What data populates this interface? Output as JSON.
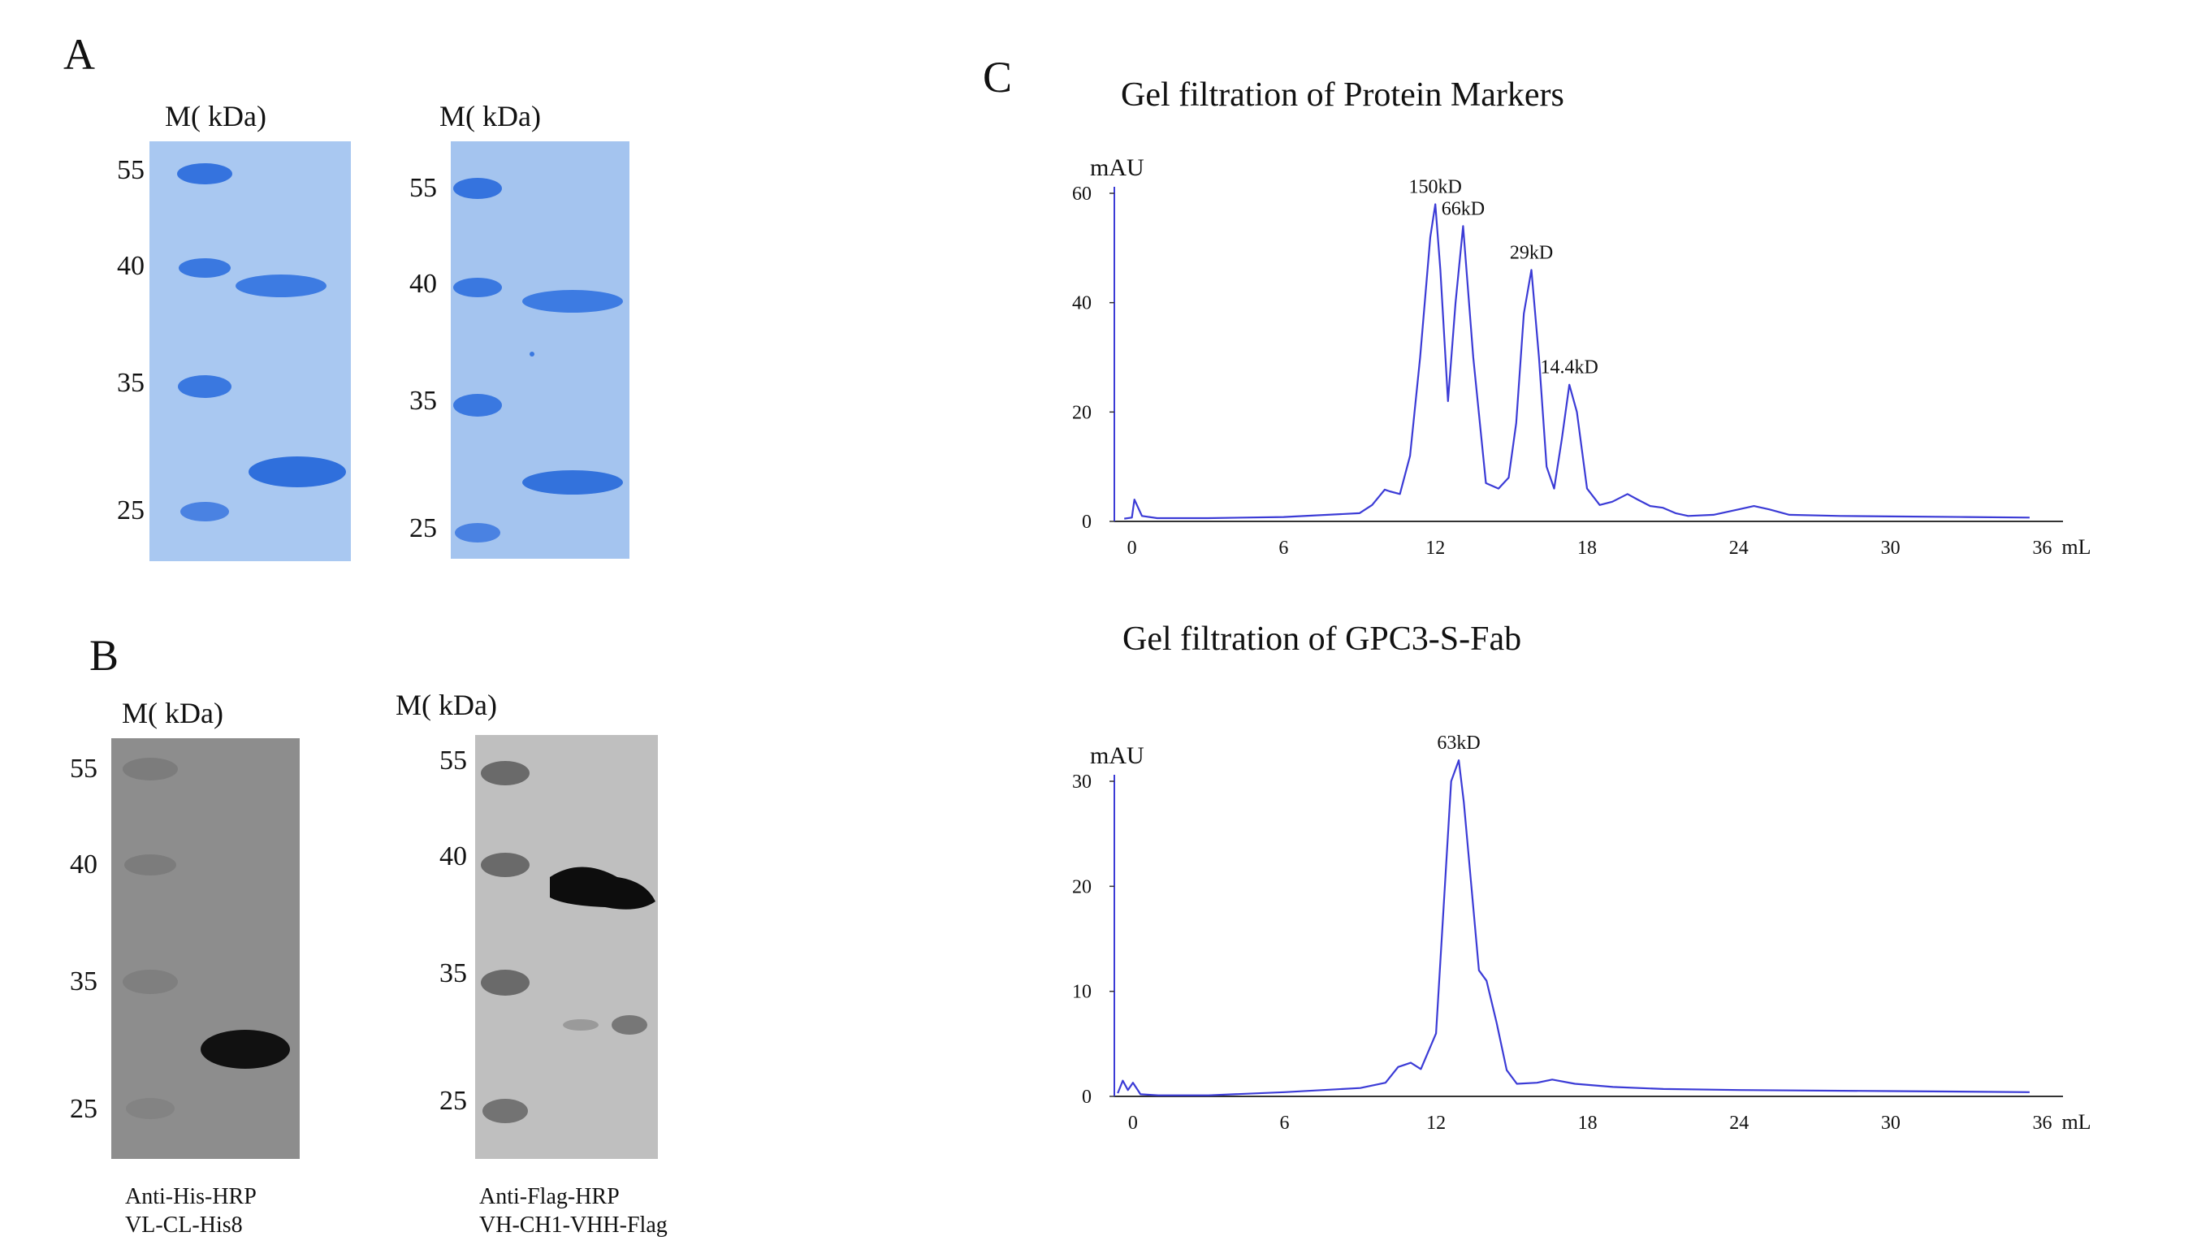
{
  "panels": {
    "a": "A",
    "b": "B",
    "c": "C"
  },
  "marker_label": "M( kDa)",
  "gel_a1": {
    "ticks": [
      "55",
      "40",
      "35",
      "25"
    ]
  },
  "gel_a2": {
    "ticks": [
      "55",
      "40",
      "35",
      "25"
    ]
  },
  "blot_b1": {
    "ticks": [
      "55",
      "40",
      "35",
      "25"
    ],
    "caption_line1": "Anti-His-HRP",
    "caption_line2": "VL-CL-His8"
  },
  "blot_b2": {
    "ticks": [
      "55",
      "40",
      "35",
      "25"
    ],
    "caption_line1": "Anti-Flag-HRP",
    "caption_line2": "VH-CH1-VHH-Flag"
  },
  "colors": {
    "gel_bg": "#a8c8f0",
    "gel_band": "#2f6fdc",
    "blot_bg": "#8c8c8c",
    "blot_bg2": "#bcbcbc",
    "trace": "#3b3bd6"
  },
  "chart_data": [
    {
      "type": "line",
      "title": "Gel filtration of Protein Markers",
      "ylabel": "mAU",
      "xlabel": "mL",
      "xlim": [
        -0.5,
        36.5
      ],
      "ylim": [
        0,
        60
      ],
      "xticks": [
        0,
        6,
        12,
        18,
        24,
        30,
        36
      ],
      "yticks": [
        0,
        20,
        40,
        60
      ],
      "x": [
        -0.3,
        0,
        0.1,
        0.4,
        1,
        3,
        6,
        9,
        9.5,
        10,
        10.2,
        10.6,
        11,
        11.4,
        11.8,
        12,
        12.2,
        12.5,
        12.8,
        13.1,
        13.5,
        14,
        14.5,
        14.9,
        15.2,
        15.5,
        15.8,
        16.1,
        16.4,
        16.7,
        17.0,
        17.3,
        17.6,
        18,
        18.5,
        19,
        19.6,
        20,
        20.5,
        21,
        21.5,
        22,
        23,
        24,
        24.6,
        25.2,
        26,
        28,
        30,
        33,
        35.5
      ],
      "series": [
        {
          "name": "Protein Markers",
          "values": [
            0.5,
            0.7,
            4,
            1,
            0.6,
            0.6,
            0.8,
            1.5,
            3,
            5.8,
            5.5,
            5,
            12,
            30,
            52,
            58,
            46,
            22,
            40,
            54,
            30,
            7,
            6,
            8,
            18,
            38,
            46,
            30,
            10,
            6,
            15,
            25,
            20,
            6,
            3,
            3.6,
            5,
            4,
            2.8,
            2.5,
            1.5,
            1,
            1.2,
            2.2,
            2.8,
            2.2,
            1.2,
            1,
            0.9,
            0.8,
            0.7
          ]
        }
      ],
      "annotations": [
        {
          "x": 12.0,
          "y": 58,
          "text": "150kD"
        },
        {
          "x": 13.1,
          "y": 54,
          "text": "66kD"
        },
        {
          "x": 15.8,
          "y": 46,
          "text": "29kD"
        },
        {
          "x": 17.3,
          "y": 25,
          "text": "14.4kD"
        }
      ]
    },
    {
      "type": "line",
      "title": "Gel filtration of GPC3-S-Fab",
      "ylabel": "mAU",
      "xlabel": "mL",
      "xlim": [
        -0.8,
        36.5
      ],
      "ylim": [
        0,
        30
      ],
      "xticks": [
        0,
        6,
        12,
        18,
        24,
        30,
        36
      ],
      "yticks": [
        0,
        10,
        20,
        30
      ],
      "x": [
        -0.6,
        -0.4,
        -0.2,
        0,
        0.3,
        1,
        3,
        6,
        9,
        10,
        10.5,
        11,
        11.4,
        12,
        12.3,
        12.6,
        12.9,
        13.1,
        13.4,
        13.7,
        14,
        14.4,
        14.8,
        15.2,
        16,
        16.6,
        17.5,
        19,
        21,
        24,
        30,
        35.5
      ],
      "series": [
        {
          "name": "GPC3-S-Fab",
          "values": [
            0.3,
            1.5,
            0.6,
            1.3,
            0.2,
            0.1,
            0.1,
            0.4,
            0.8,
            1.3,
            2.8,
            3.2,
            2.6,
            6,
            18,
            30,
            32,
            28,
            20,
            12,
            11,
            7,
            2.5,
            1.2,
            1.3,
            1.6,
            1.2,
            0.9,
            0.7,
            0.6,
            0.5,
            0.4
          ]
        }
      ],
      "annotations": [
        {
          "x": 12.9,
          "y": 32,
          "text": "63kD"
        }
      ]
    }
  ]
}
